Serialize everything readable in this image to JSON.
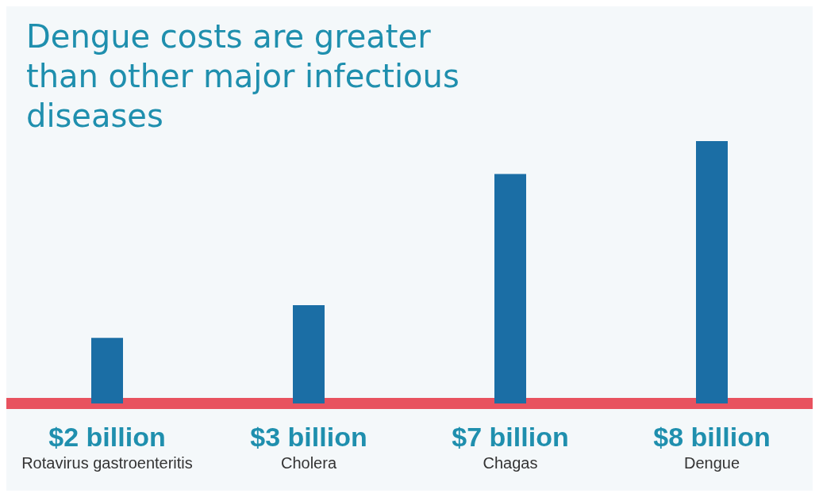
{
  "chart_data": {
    "type": "bar",
    "title": "Dengue costs are greater than other major infectious diseases",
    "categories": [
      "Rotavirus gastroenteritis",
      "Cholera",
      "Chagas",
      "Dengue"
    ],
    "values": [
      2,
      3,
      7,
      8
    ],
    "value_labels": [
      "$2 billion",
      "$3 billion",
      "$7 billion",
      "$8 billion"
    ],
    "color": "#1b6ea5"
  }
}
